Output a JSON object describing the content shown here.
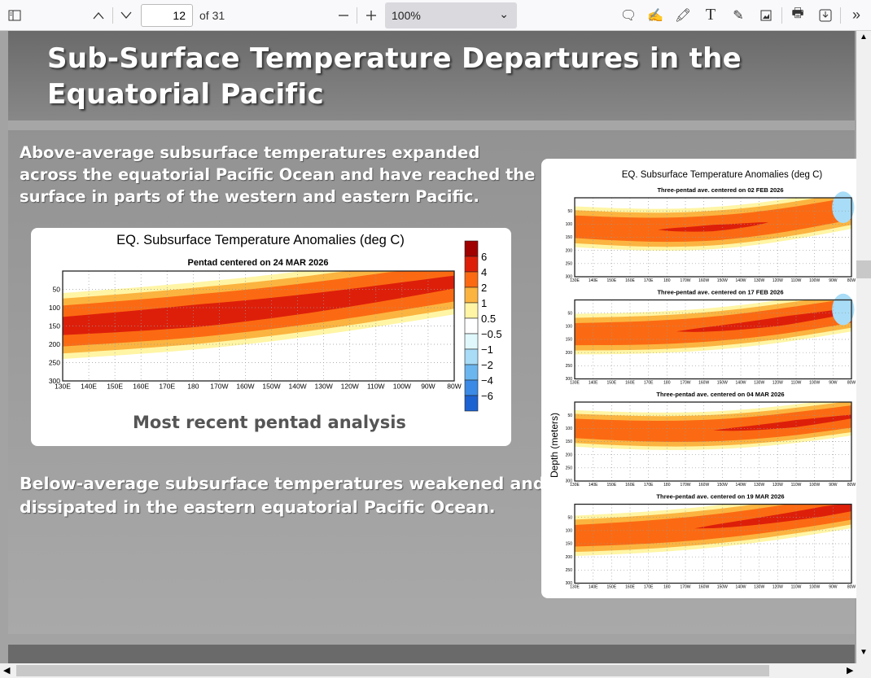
{
  "toolbar": {
    "page_current": "12",
    "page_total": "of 31",
    "zoom": "100%",
    "icons": [
      "sidebar-toggle-icon",
      "chevron-up-icon",
      "chevron-down-icon",
      "zoom-out-icon",
      "zoom-in-icon",
      "comment-icon",
      "sign-icon",
      "highlight-icon",
      "text-icon",
      "draw-icon",
      "image-icon",
      "print-icon",
      "save-icon",
      "more-tools-icon"
    ]
  },
  "slide": {
    "title": "Sub-Surface Temperature Departures in the Equatorial Pacific",
    "para1": "Above-average subsurface temperatures expanded across the equatorial Pacific Ocean and have reached the surface in parts of the western and eastern Pacific.",
    "para2": "Below-average subsurface temperatures weakened and dissipated in the eastern equatorial Pacific Ocean.",
    "caption": "Most recent pentad analysis"
  },
  "chart_data": [
    {
      "type": "heatmap",
      "title": "EQ. Subsurface Temperature Anomalies (deg C)",
      "subtitle": "Pentad centered on 24 MAR 2026",
      "x_ticks": [
        "130E",
        "140E",
        "150E",
        "160E",
        "170E",
        "180",
        "170W",
        "160W",
        "150W",
        "140W",
        "130W",
        "120W",
        "110W",
        "100W",
        "90W",
        "80W"
      ],
      "y_ticks": [
        "50",
        "100",
        "150",
        "200",
        "250",
        "300"
      ],
      "ylim": [
        300,
        0
      ],
      "grid": true,
      "colorbar": {
        "labels": [
          "6",
          "4",
          "2",
          "1",
          "0.5",
          "−0.5",
          "−1",
          "−2",
          "−4",
          "−6"
        ],
        "colors": [
          "#a00000",
          "#dd1f0a",
          "#fb6a12",
          "#fbb440",
          "#fff5a5",
          "#ffffff",
          "#e0f8fc",
          "#a8dcf7",
          "#6bb6ef",
          "#3a8ae6",
          "#1d62d1"
        ]
      }
    },
    {
      "type": "heatmap",
      "title": "EQ. Subsurface Temperature Anomalies (deg C)",
      "ylabel": "Depth (meters)",
      "panels": [
        {
          "subtitle": "Three-pentad ave. centered on 02 FEB 2026"
        },
        {
          "subtitle": "Three-pentad ave. centered on 17 FEB 2026"
        },
        {
          "subtitle": "Three-pentad ave. centered on 04 MAR 2026"
        },
        {
          "subtitle": "Three-pentad ave. centered on 19 MAR 2026"
        }
      ],
      "x_ticks": [
        "130E",
        "140E",
        "150E",
        "160E",
        "170E",
        "180",
        "170W",
        "160W",
        "150W",
        "140W",
        "130W",
        "120W",
        "110W",
        "100W",
        "90W",
        "80W"
      ],
      "y_ticks": [
        "50",
        "100",
        "150",
        "200",
        "250",
        "300"
      ],
      "ylim": [
        300,
        0
      ],
      "grid": true
    }
  ]
}
